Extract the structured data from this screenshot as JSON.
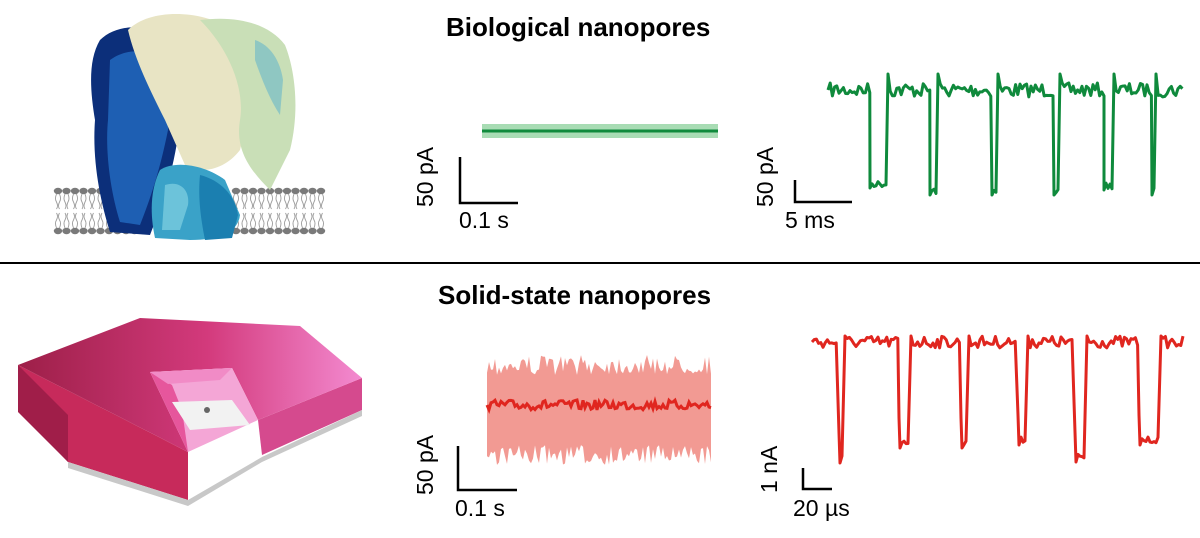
{
  "sections": {
    "biological": {
      "title": "Biological nanopores"
    },
    "solid_state": {
      "title": "Solid-state nanopores"
    }
  },
  "scale_bars": {
    "bio_baseline": {
      "current": "50 pA",
      "time": "0.1 s"
    },
    "bio_events": {
      "current": "50 pA",
      "time": "5 ms"
    },
    "ss_baseline": {
      "current": "50 pA",
      "time": "0.1 s"
    },
    "ss_events": {
      "current": "1 nA",
      "time": "20 µs"
    }
  },
  "colors": {
    "bio_trace": "#0f8a3c",
    "bio_trace_light": "#a8dcb4",
    "ss_trace": "#e0261f",
    "ss_trace_light": "#f29a93",
    "membrane_dark": "#b81f4f",
    "membrane_light": "#f06ab1",
    "protein_blue_dark": "#0c2f7a",
    "protein_blue": "#1e5fb3",
    "protein_cream": "#e8e4c4",
    "protein_mint": "#c9dfb7",
    "protein_cyan": "#3aa2c8"
  },
  "icons": [
    "protein-pore-icon",
    "lipid-bilayer-icon",
    "solid-state-membrane-icon"
  ]
}
